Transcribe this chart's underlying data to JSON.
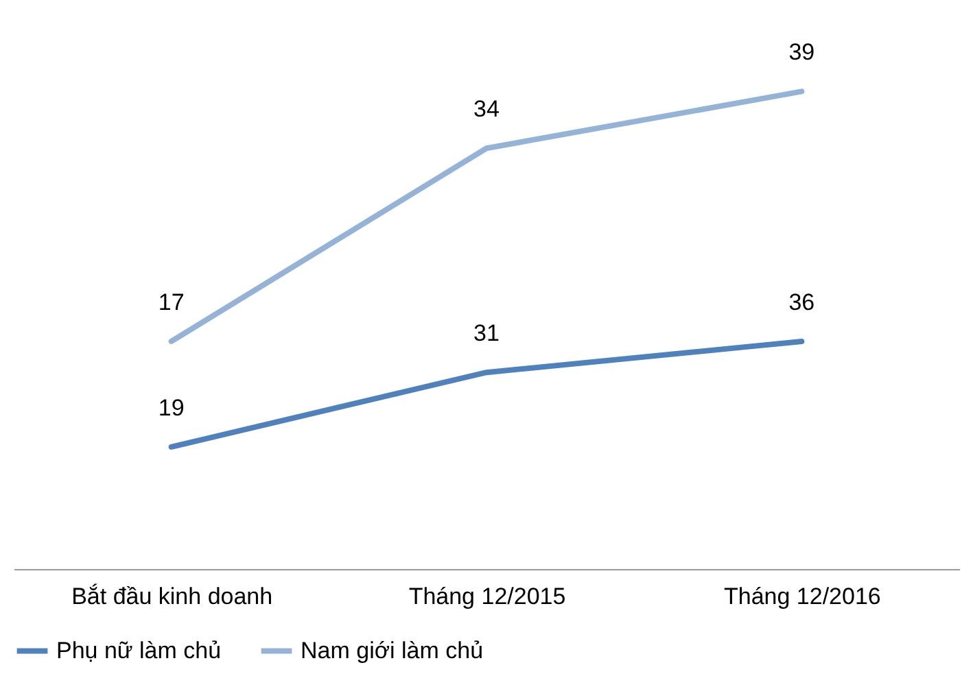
{
  "chart_data": {
    "type": "line",
    "categories": [
      "Bắt đầu kinh doanh",
      "Tháng 12/2015",
      "Tháng 12/2016"
    ],
    "series": [
      {
        "name": "Phụ nữ làm chủ",
        "color": "#4f81bd",
        "values": [
          19,
          31,
          36
        ],
        "axis": "y2"
      },
      {
        "name": "Nam giới làm chủ",
        "color": "#95b3d7",
        "values": [
          17,
          34,
          39
        ]
      }
    ],
    "tick_labels": "x",
    "data_labels": true,
    "grid": false,
    "legend": "bottom",
    "marker": "none",
    "line_style": "solid"
  }
}
